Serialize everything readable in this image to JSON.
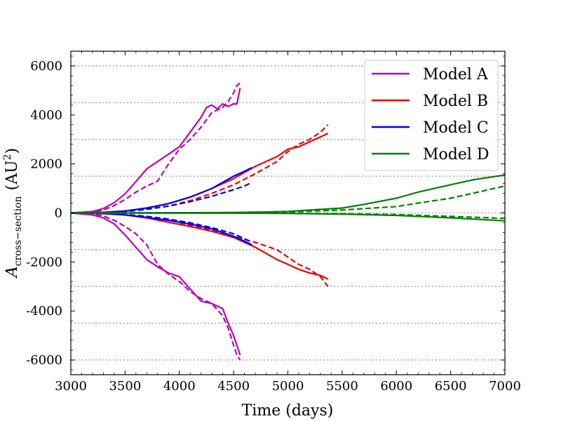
{
  "chart_data": {
    "type": "line",
    "title": "",
    "xlabel": "Time (days)",
    "ylabel": "A_cross-section (AU²)",
    "ylabel_main": "A",
    "ylabel_sub": "cross−section",
    "ylabel_unit_open": "(AU",
    "ylabel_unit_sup": "2",
    "ylabel_unit_close": ")",
    "xlim": [
      3000,
      7000
    ],
    "ylim": [
      -6600,
      6600
    ],
    "xticks": [
      3000,
      3500,
      4000,
      4500,
      5000,
      5500,
      6000,
      6500,
      7000
    ],
    "xtick_labels": [
      "3000",
      "3500",
      "4000",
      "4500",
      "5000",
      "5500",
      "6000",
      "6500",
      "7000"
    ],
    "yticks": [
      -6000,
      -4000,
      -2000,
      0,
      2000,
      4000,
      6000
    ],
    "ytick_labels": [
      "-6000",
      "-4000",
      "-2000",
      "0",
      "2000",
      "4000",
      "6000"
    ],
    "gridlines_y": [
      -6000,
      -4500,
      -3000,
      -1500,
      0,
      1500,
      3000,
      4500,
      6000
    ],
    "grid": "horizontal dotted",
    "legend_position": "top-right",
    "series": [
      {
        "name": "Model A (upper, solid)",
        "legend": "Model A",
        "color": "#bb00bb",
        "dash": "solid",
        "x": [
          3000,
          3200,
          3300,
          3400,
          3500,
          3600,
          3700,
          3800,
          3900,
          4000,
          4100,
          4200,
          4250,
          4300,
          4350,
          4400,
          4450,
          4500,
          4530,
          4560
        ],
        "y": [
          0,
          60,
          180,
          420,
          780,
          1280,
          1800,
          2100,
          2400,
          2700,
          3300,
          3900,
          4300,
          4400,
          4250,
          4450,
          4350,
          4450,
          4450,
          5100
        ]
      },
      {
        "name": "Model A (upper, dashed)",
        "legend": "",
        "color": "#bb00bb",
        "dash": "dashed",
        "x": [
          3000,
          3200,
          3300,
          3400,
          3500,
          3600,
          3700,
          3800,
          3900,
          4000,
          4100,
          4200,
          4300,
          4400,
          4450,
          4500,
          4530,
          4560
        ],
        "y": [
          0,
          40,
          120,
          300,
          550,
          850,
          1100,
          1300,
          2000,
          2600,
          3000,
          3500,
          4100,
          4300,
          4550,
          4900,
          5200,
          5300
        ]
      },
      {
        "name": "Model A (lower, solid)",
        "legend": "",
        "color": "#bb00bb",
        "dash": "solid",
        "x": [
          3000,
          3200,
          3300,
          3400,
          3500,
          3600,
          3700,
          3800,
          3900,
          4000,
          4100,
          4200,
          4300,
          4400,
          4450,
          4500,
          4530,
          4560
        ],
        "y": [
          0,
          -80,
          -200,
          -450,
          -900,
          -1400,
          -1900,
          -2200,
          -2450,
          -2600,
          -3100,
          -3600,
          -3700,
          -3900,
          -4500,
          -5000,
          -5400,
          -5800
        ]
      },
      {
        "name": "Model A (lower, dashed)",
        "legend": "",
        "color": "#bb00bb",
        "dash": "dashed",
        "x": [
          3000,
          3200,
          3300,
          3400,
          3500,
          3600,
          3700,
          3800,
          3900,
          4000,
          4100,
          4200,
          4300,
          4400,
          4450,
          4500,
          4530,
          4560
        ],
        "y": [
          0,
          -40,
          -120,
          -300,
          -550,
          -850,
          -1300,
          -2100,
          -2500,
          -2800,
          -3200,
          -3500,
          -3700,
          -4200,
          -4700,
          -5400,
          -5800,
          -6000
        ]
      },
      {
        "name": "Model B (upper, solid)",
        "legend": "Model B",
        "color": "#ee0000",
        "dash": "solid",
        "x": [
          3000,
          3300,
          3500,
          3700,
          3900,
          4100,
          4300,
          4500,
          4700,
          4900,
          5000,
          5100,
          5200,
          5300,
          5370
        ],
        "y": [
          0,
          30,
          80,
          200,
          380,
          650,
          1000,
          1400,
          1900,
          2300,
          2600,
          2700,
          2900,
          3100,
          3250
        ]
      },
      {
        "name": "Model B (upper, dashed)",
        "legend": "",
        "color": "#ee0000",
        "dash": "dashed",
        "x": [
          3000,
          3300,
          3500,
          3700,
          3900,
          4100,
          4300,
          4500,
          4700,
          4900,
          5000,
          5100,
          5200,
          5300,
          5370
        ],
        "y": [
          0,
          20,
          60,
          150,
          280,
          500,
          800,
          1150,
          1600,
          2100,
          2500,
          2800,
          3000,
          3300,
          3600
        ]
      },
      {
        "name": "Model B (lower, solid)",
        "legend": "",
        "color": "#ee0000",
        "dash": "solid",
        "x": [
          3000,
          3300,
          3500,
          3700,
          3900,
          4100,
          4300,
          4500,
          4700,
          4900,
          5000,
          5100,
          5200,
          5300,
          5370
        ],
        "y": [
          0,
          -30,
          -80,
          -200,
          -380,
          -550,
          -750,
          -1000,
          -1400,
          -1900,
          -2100,
          -2300,
          -2450,
          -2550,
          -2700
        ]
      },
      {
        "name": "Model B (lower, dashed)",
        "legend": "",
        "color": "#ee0000",
        "dash": "dashed",
        "x": [
          3000,
          3300,
          3500,
          3700,
          3900,
          4100,
          4300,
          4500,
          4700,
          4900,
          5000,
          5100,
          5200,
          5300,
          5370
        ],
        "y": [
          0,
          -20,
          -60,
          -150,
          -280,
          -500,
          -700,
          -950,
          -1200,
          -1500,
          -1800,
          -2100,
          -2300,
          -2600,
          -3000
        ]
      },
      {
        "name": "Model C (upper, solid)",
        "legend": "Model C",
        "color": "#0000ee",
        "dash": "solid",
        "x": [
          3000,
          3300,
          3500,
          3700,
          3900,
          4100,
          4300,
          4500,
          4600,
          4670
        ],
        "y": [
          0,
          20,
          80,
          200,
          380,
          640,
          1000,
          1500,
          1700,
          1850
        ]
      },
      {
        "name": "Model C (upper, dashed)",
        "legend": "",
        "color": "#0000ee",
        "dash": "dashed",
        "x": [
          3000,
          3300,
          3500,
          3700,
          3900,
          4100,
          4300,
          4500,
          4600,
          4670
        ],
        "y": [
          0,
          15,
          60,
          150,
          280,
          460,
          680,
          950,
          1100,
          1250
        ]
      },
      {
        "name": "Model C (lower, solid)",
        "legend": "",
        "color": "#0000ee",
        "dash": "solid",
        "x": [
          3000,
          3300,
          3500,
          3700,
          3900,
          4100,
          4300,
          4500,
          4600,
          4670
        ],
        "y": [
          0,
          -20,
          -80,
          -180,
          -300,
          -450,
          -650,
          -950,
          -1150,
          -1300
        ]
      },
      {
        "name": "Model C (lower, dashed)",
        "legend": "",
        "color": "#0000ee",
        "dash": "dashed",
        "x": [
          3000,
          3300,
          3500,
          3700,
          3900,
          4100,
          4300,
          4500,
          4600,
          4670
        ],
        "y": [
          0,
          -15,
          -60,
          -140,
          -250,
          -400,
          -600,
          -850,
          -1050,
          -1200
        ]
      },
      {
        "name": "Model D (upper, solid)",
        "legend": "Model D",
        "color": "#008000",
        "dash": "solid",
        "x": [
          3000,
          3500,
          4000,
          4500,
          5000,
          5200,
          5500,
          5700,
          6000,
          6200,
          6500,
          6700,
          7000
        ],
        "y": [
          0,
          5,
          10,
          20,
          60,
          120,
          200,
          350,
          600,
          850,
          1150,
          1350,
          1550
        ]
      },
      {
        "name": "Model D (upper, dashed)",
        "legend": "",
        "color": "#008000",
        "dash": "dashed",
        "x": [
          3000,
          3500,
          4000,
          4500,
          5000,
          5500,
          6000,
          6200,
          6500,
          6700,
          7000
        ],
        "y": [
          0,
          5,
          10,
          15,
          40,
          120,
          260,
          400,
          600,
          800,
          1100
        ]
      },
      {
        "name": "Model D (lower, solid)",
        "legend": "",
        "color": "#008000",
        "dash": "solid",
        "x": [
          3000,
          3500,
          4000,
          4500,
          5000,
          5500,
          6000,
          6500,
          7000
        ],
        "y": [
          0,
          -2,
          -5,
          -10,
          -20,
          -50,
          -100,
          -200,
          -320
        ]
      },
      {
        "name": "Model D (lower, dashed)",
        "legend": "",
        "color": "#008000",
        "dash": "dashed",
        "x": [
          3000,
          3500,
          4000,
          4500,
          5000,
          5500,
          6000,
          6500,
          7000
        ],
        "y": [
          0,
          -2,
          -4,
          -6,
          -12,
          -30,
          -70,
          -140,
          -220
        ]
      }
    ],
    "legend_items": [
      {
        "label": "Model A",
        "color": "#bb00bb"
      },
      {
        "label": "Model B",
        "color": "#ee0000"
      },
      {
        "label": "Model C",
        "color": "#0000ee"
      },
      {
        "label": "Model D",
        "color": "#008000"
      }
    ]
  }
}
